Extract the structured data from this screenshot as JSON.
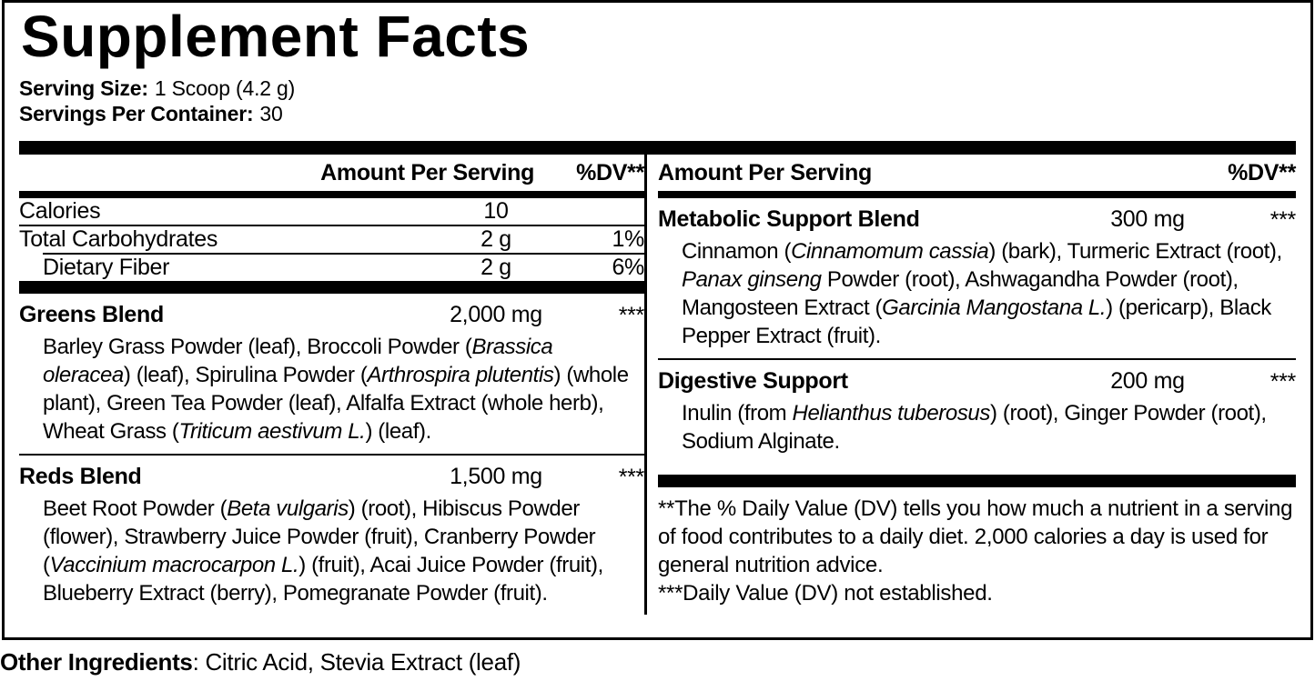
{
  "title": "Supplement Facts",
  "serving": {
    "size_label": "Serving Size:",
    "size_value": "1 Scoop (4.2 g)",
    "count_label": "Servings Per Container:",
    "count_value": "30"
  },
  "header": {
    "amount": "Amount Per Serving",
    "dv": "%DV**"
  },
  "left": {
    "nutrients": [
      {
        "name": "Calories",
        "amount": "10",
        "dv": ""
      },
      {
        "name": "Total Carbohydrates",
        "amount": "2 g",
        "dv": "1%"
      },
      {
        "name": "Dietary Fiber",
        "amount": "2 g",
        "dv": "6%"
      }
    ],
    "blends": [
      {
        "name": "Greens Blend",
        "amount": "2,000 mg",
        "dv": "***",
        "desc": [
          {
            "t": "Barley Grass Powder (leaf), Broccoli Powder ("
          },
          {
            "t": "Brassica oleracea",
            "i": true
          },
          {
            "t": ") (leaf), Spirulina Powder ("
          },
          {
            "t": "Arthrospira plutentis",
            "i": true
          },
          {
            "t": ") (whole plant), Green Tea Powder (leaf), Alfalfa Extract (whole herb), Wheat Grass ("
          },
          {
            "t": "Triticum aestivum L.",
            "i": true
          },
          {
            "t": ") (leaf)."
          }
        ]
      },
      {
        "name": "Reds Blend",
        "amount": "1,500 mg",
        "dv": "***",
        "desc": [
          {
            "t": "Beet Root Powder ("
          },
          {
            "t": "Beta vulgaris",
            "i": true
          },
          {
            "t": ") (root), Hibiscus Powder (flower), Strawberry Juice Powder (fruit), Cranberry Powder ("
          },
          {
            "t": "Vaccinium macrocarpon L.",
            "i": true
          },
          {
            "t": ") (fruit), Acai Juice Powder (fruit), Blueberry Extract (berry), Pomegranate Powder (fruit)."
          }
        ]
      }
    ]
  },
  "right": {
    "blends": [
      {
        "name": "Metabolic Support Blend",
        "amount": "300 mg",
        "dv": "***",
        "desc": [
          {
            "t": "Cinnamon ("
          },
          {
            "t": "Cinnamomum cassia",
            "i": true
          },
          {
            "t": ") (bark), Turmeric Extract (root), "
          },
          {
            "t": "Panax ginseng",
            "i": true
          },
          {
            "t": " Powder (root), Ashwagandha Powder (root), Mangosteen Extract ("
          },
          {
            "t": "Garcinia Mangostana L.",
            "i": true
          },
          {
            "t": ") (pericarp), Black Pepper Extract (fruit)."
          }
        ]
      },
      {
        "name": "Digestive Support",
        "amount": "200 mg",
        "dv": "***",
        "desc": [
          {
            "t": "Inulin (from "
          },
          {
            "t": "Helianthus tuberosus",
            "i": true
          },
          {
            "t": ") (root), Ginger Powder (root), Sodium Alginate."
          }
        ]
      }
    ],
    "footnotes": [
      "**The % Daily Value (DV) tells you how much a nutrient in a serving of food contributes to a daily diet. 2,000 calories a day is used for general nutrition advice.",
      "***Daily Value (DV) not established."
    ]
  },
  "other_ingredients": {
    "label": "Other Ingredients",
    "value": ": Citric Acid, Stevia Extract (leaf)"
  }
}
